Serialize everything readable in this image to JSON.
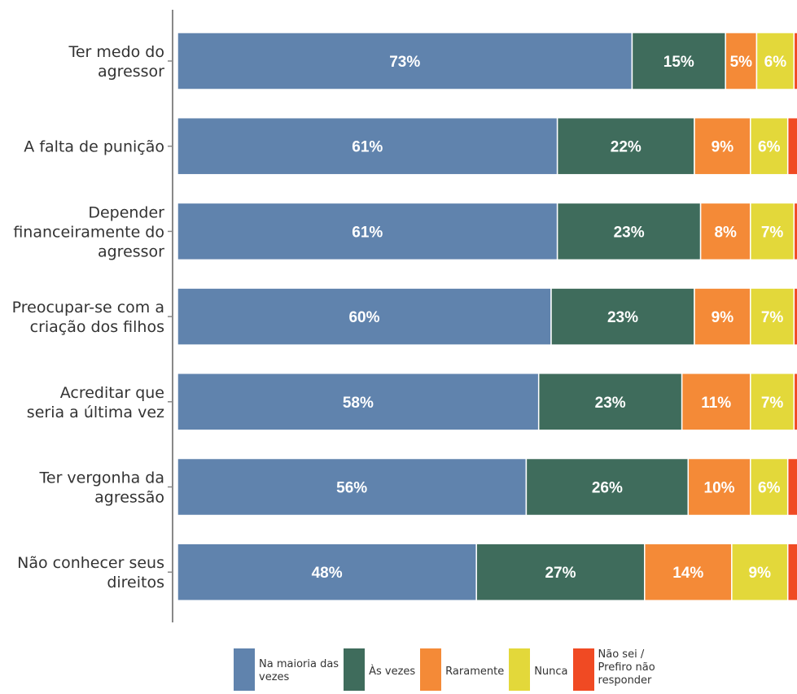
{
  "chart_data": {
    "type": "bar",
    "orientation": "horizontal",
    "stacked": true,
    "categories": [
      [
        "Ter medo do",
        "agressor"
      ],
      [
        "A falta de punição"
      ],
      [
        "Depender",
        "financeiramente do",
        "agressor"
      ],
      [
        "Preocupar-se com a",
        "criação dos filhos"
      ],
      [
        "Acreditar que",
        "seria a última vez"
      ],
      [
        "Ter vergonha da",
        "agressão"
      ],
      [
        "Não conhecer seus",
        "direitos"
      ]
    ],
    "series": [
      {
        "name": "Na maioria das vezes",
        "color": "#6083ad",
        "values": [
          73,
          61,
          61,
          60,
          58,
          56,
          48
        ]
      },
      {
        "name": "Às vezes",
        "color": "#3f6c5c",
        "values": [
          15,
          22,
          23,
          23,
          23,
          26,
          27
        ]
      },
      {
        "name": "Raramente",
        "color": "#f48a37",
        "values": [
          5,
          9,
          8,
          9,
          11,
          10,
          14
        ]
      },
      {
        "name": "Nunca",
        "color": "#e3d83a",
        "values": [
          6,
          6,
          7,
          7,
          7,
          6,
          9
        ]
      },
      {
        "name": "Não sei / Prefiro não responder",
        "color": "#f04a23",
        "values": [
          1,
          2,
          1,
          1,
          1,
          2,
          2
        ]
      }
    ],
    "data_labels": [
      [
        "73%",
        "15%",
        "5%",
        "6%",
        ""
      ],
      [
        "61%",
        "22%",
        "9%",
        "6%",
        ""
      ],
      [
        "61%",
        "23%",
        "8%",
        "7%",
        ""
      ],
      [
        "60%",
        "23%",
        "9%",
        "7%",
        ""
      ],
      [
        "58%",
        "23%",
        "11%",
        "7%",
        ""
      ],
      [
        "56%",
        "26%",
        "10%",
        "6%",
        ""
      ],
      [
        "48%",
        "27%",
        "14%",
        "9%",
        ""
      ]
    ],
    "xlim": [
      0,
      100
    ],
    "legend_position": "bottom",
    "grid": false
  },
  "legend": [
    {
      "label": "Na maioria das\nvezes",
      "color": "#6083ad"
    },
    {
      "label": "Às vezes",
      "color": "#3f6c5c"
    },
    {
      "label": "Raramente",
      "color": "#f48a37"
    },
    {
      "label": "Nunca",
      "color": "#e3d83a"
    },
    {
      "label": "Não sei /\nPrefiro não\nresponder",
      "color": "#f04a23"
    }
  ]
}
